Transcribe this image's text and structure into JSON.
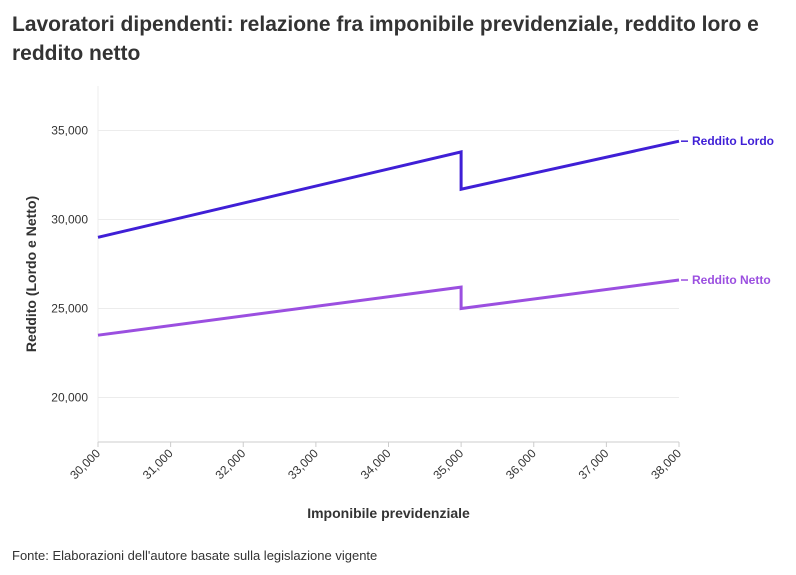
{
  "title": "Lavoratori dipendenti: relazione fra imponibile previdenziale, reddito loro e reddito netto",
  "source": "Fonte: Elaborazioni dell'autore basate sulla legislazione vigente",
  "colors": {
    "lordo": "#3f1fd6",
    "netto": "#9b4fe0",
    "grid": "#ececec",
    "axis": "#cccccc",
    "text": "#333333"
  },
  "chart_data": {
    "type": "line",
    "title": "Lavoratori dipendenti: relazione fra imponibile previdenziale, reddito loro e reddito netto",
    "xlabel": "Imponibile previdenziale",
    "ylabel": "Reddito (Lordo e Netto)",
    "xlim": [
      30000,
      38000
    ],
    "ylim": [
      17500,
      37500
    ],
    "x_ticks": [
      30000,
      31000,
      32000,
      33000,
      34000,
      35000,
      36000,
      37000,
      38000
    ],
    "x_tick_labels": [
      "30,000",
      "31,000",
      "32,000",
      "33,000",
      "34,000",
      "35,000",
      "36,000",
      "37,000",
      "38,000"
    ],
    "y_ticks": [
      20000,
      25000,
      30000,
      35000
    ],
    "y_tick_labels": [
      "20,000",
      "25,000",
      "30,000",
      "35,000"
    ],
    "grid": true,
    "legend": "direct labels at line ends",
    "series": [
      {
        "name": "Reddito Lordo",
        "x": [
          30000,
          35000,
          35000,
          38000
        ],
        "y": [
          29000,
          33800,
          31700,
          34400
        ]
      },
      {
        "name": "Reddito Netto",
        "x": [
          30000,
          35000,
          35000,
          38000
        ],
        "y": [
          23500,
          26200,
          25000,
          26600
        ]
      }
    ]
  }
}
